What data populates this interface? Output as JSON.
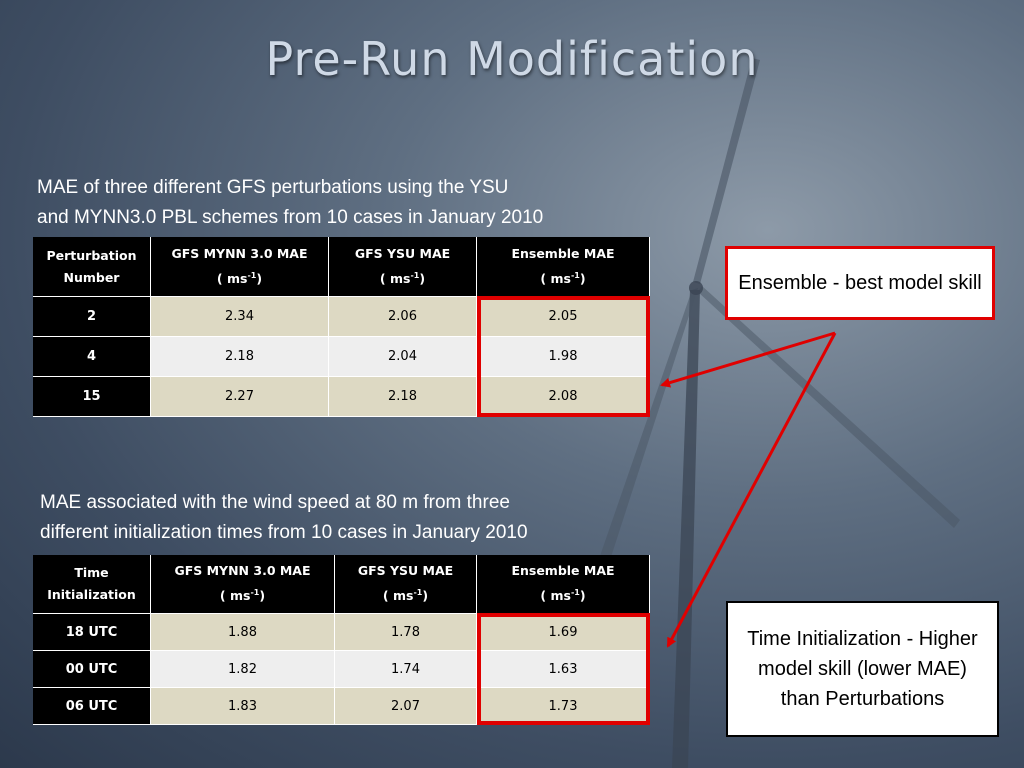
{
  "title": "Pre-Run Modification",
  "tables": [
    {
      "caption": [
        "MAE of three different GFS perturbations using the YSU",
        "and MYNN3.0 PBL schemes from 10 cases in January 2010"
      ],
      "header": [
        {
          "lines": [
            "Perturbation",
            "Number"
          ]
        },
        {
          "lines": [
            "GFS MYNN 3.0 MAE"
          ],
          "unit": [
            "( ms",
            "-1",
            ")"
          ]
        },
        {
          "lines": [
            "GFS YSU MAE"
          ],
          "unit": [
            "( ms",
            "-1",
            ")"
          ]
        },
        {
          "lines": [
            "Ensemble MAE"
          ],
          "unit": [
            "( ms",
            "-1",
            ")"
          ]
        }
      ],
      "rows": [
        [
          "2",
          "2.34",
          "2.06",
          "2.05"
        ],
        [
          "4",
          "2.18",
          "2.04",
          "1.98"
        ],
        [
          "15",
          "2.27",
          "2.18",
          "2.08"
        ]
      ]
    },
    {
      "caption": [
        "MAE associated with the wind speed at 80 m from three",
        "different initialization times from 10 cases in January 2010"
      ],
      "header": [
        {
          "lines": [
            "Time",
            "Initialization"
          ]
        },
        {
          "lines": [
            "GFS MYNN 3.0 MAE"
          ],
          "unit": [
            "( ms",
            "-1",
            ")"
          ]
        },
        {
          "lines": [
            "GFS YSU MAE"
          ],
          "unit": [
            "( ms",
            "-1",
            ")"
          ]
        },
        {
          "lines": [
            "Ensemble MAE"
          ],
          "unit": [
            "( ms",
            "-1",
            ")"
          ]
        }
      ],
      "rows": [
        [
          "18 UTC",
          "1.88",
          "1.78",
          "1.69"
        ],
        [
          "00 UTC",
          "1.82",
          "1.74",
          "1.63"
        ],
        [
          "06 UTC",
          "1.83",
          "2.07",
          "1.73"
        ]
      ]
    }
  ],
  "callouts": [
    "Ensemble  - best model skill",
    "Time Initialization - Higher model skill (lower MAE) than Perturbations"
  ]
}
